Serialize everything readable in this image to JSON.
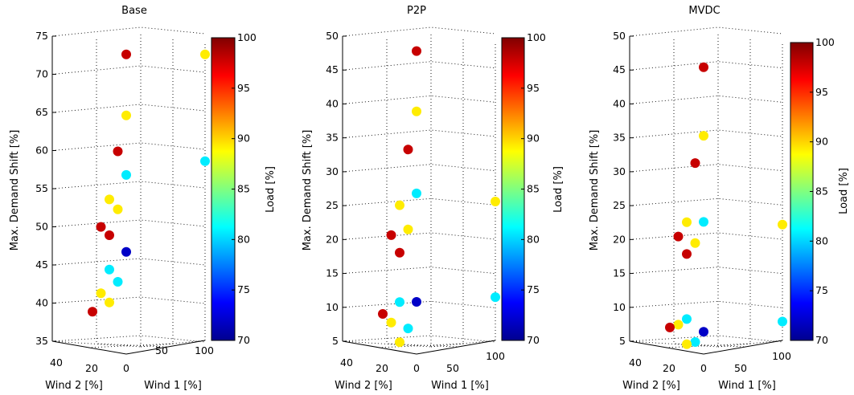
{
  "colorbar": {
    "min": 70,
    "max": 100,
    "ticks": [
      70,
      75,
      80,
      85,
      90,
      95,
      100
    ],
    "label": "Load [%]"
  },
  "floor_labels": {
    "wind2_ticks": [
      "40",
      "20",
      "0"
    ],
    "wind1_ticks": [
      "0",
      "50",
      "100"
    ],
    "wind2_label": "Wind 2 [%]",
    "wind1_label": "Wind 1 [%]"
  },
  "ylabel": "Max. Demand Shift [%]",
  "chart_data": [
    {
      "type": "scatter",
      "title": "Base",
      "ylabel": "Max. Demand Shift [%]",
      "xlabel": "Wind 1 [%]",
      "zlabel": "Wind 2 [%]",
      "colorbar_label": "Load [%]",
      "ylim": [
        35,
        75
      ],
      "yticks": [
        35,
        40,
        45,
        50,
        55,
        60,
        65,
        70,
        75
      ],
      "points": [
        {
          "x": 0,
          "z": 0,
          "y": 72.6,
          "load": 100
        },
        {
          "x": 100,
          "z": 0,
          "y": 72.6,
          "load": 90
        },
        {
          "x": 0,
          "z": 0,
          "y": 64.6,
          "load": 90
        },
        {
          "x": 0,
          "z": 10,
          "y": 60.0,
          "load": 100
        },
        {
          "x": 100,
          "z": 0,
          "y": 58.6,
          "load": 80
        },
        {
          "x": 0,
          "z": 0,
          "y": 56.8,
          "load": 80
        },
        {
          "x": 0,
          "z": 20,
          "y": 53.8,
          "load": 90
        },
        {
          "x": 0,
          "z": 10,
          "y": 52.4,
          "load": 90
        },
        {
          "x": 0,
          "z": 30,
          "y": 50.3,
          "load": 100
        },
        {
          "x": 0,
          "z": 20,
          "y": 49.1,
          "load": 100
        },
        {
          "x": 0,
          "z": 0,
          "y": 46.7,
          "load": 70
        },
        {
          "x": 0,
          "z": 20,
          "y": 44.6,
          "load": 80
        },
        {
          "x": 0,
          "z": 10,
          "y": 42.9,
          "load": 80
        },
        {
          "x": 0,
          "z": 30,
          "y": 41.6,
          "load": 90
        },
        {
          "x": 0,
          "z": 20,
          "y": 40.3,
          "load": 90
        },
        {
          "x": 0,
          "z": 40,
          "y": 39.3,
          "load": 100
        }
      ]
    },
    {
      "type": "scatter",
      "title": "P2P",
      "ylabel": "Max. Demand Shift [%]",
      "xlabel": "Wind 1 [%]",
      "zlabel": "Wind 2 [%]",
      "colorbar_label": "Load [%]",
      "ylim": [
        5,
        50
      ],
      "yticks": [
        5,
        10,
        15,
        20,
        25,
        30,
        35,
        40,
        45,
        50
      ],
      "points": [
        {
          "x": 0,
          "z": 0,
          "y": 47.8,
          "load": 100
        },
        {
          "x": 0,
          "z": 0,
          "y": 38.9,
          "load": 90
        },
        {
          "x": 0,
          "z": 10,
          "y": 33.4,
          "load": 100
        },
        {
          "x": 0,
          "z": 0,
          "y": 26.8,
          "load": 80
        },
        {
          "x": 100,
          "z": 0,
          "y": 25.6,
          "load": 90
        },
        {
          "x": 0,
          "z": 20,
          "y": 25.3,
          "load": 90
        },
        {
          "x": 0,
          "z": 10,
          "y": 21.6,
          "load": 90
        },
        {
          "x": 0,
          "z": 30,
          "y": 21.0,
          "load": 100
        },
        {
          "x": 0,
          "z": 20,
          "y": 18.3,
          "load": 100
        },
        {
          "x": 100,
          "z": 0,
          "y": 11.5,
          "load": 80
        },
        {
          "x": 0,
          "z": 20,
          "y": 11.0,
          "load": 80
        },
        {
          "x": 0,
          "z": 0,
          "y": 10.8,
          "load": 70
        },
        {
          "x": 0,
          "z": 40,
          "y": 9.5,
          "load": 100
        },
        {
          "x": 0,
          "z": 30,
          "y": 8.1,
          "load": 90
        },
        {
          "x": 0,
          "z": 10,
          "y": 7.0,
          "load": 80
        },
        {
          "x": 0,
          "z": 20,
          "y": 5.1,
          "load": 90
        }
      ]
    },
    {
      "type": "scatter",
      "title": "MVDC",
      "ylabel": "Max. Demand Shift [%]",
      "xlabel": "Wind 1 [%]",
      "zlabel": "Wind 2 [%]",
      "colorbar_label": "Load [%]",
      "ylim": [
        5,
        50
      ],
      "yticks": [
        5,
        10,
        15,
        20,
        25,
        30,
        35,
        40,
        45,
        50
      ],
      "points": [
        {
          "x": 0,
          "z": 0,
          "y": 45.4,
          "load": 100
        },
        {
          "x": 0,
          "z": 0,
          "y": 35.3,
          "load": 90
        },
        {
          "x": 0,
          "z": 10,
          "y": 31.4,
          "load": 100
        },
        {
          "x": 0,
          "z": 20,
          "y": 22.8,
          "load": 90
        },
        {
          "x": 0,
          "z": 0,
          "y": 22.6,
          "load": 80
        },
        {
          "x": 100,
          "z": 0,
          "y": 22.2,
          "load": 90
        },
        {
          "x": 0,
          "z": 30,
          "y": 20.8,
          "load": 100
        },
        {
          "x": 0,
          "z": 10,
          "y": 19.6,
          "load": 90
        },
        {
          "x": 0,
          "z": 20,
          "y": 18.1,
          "load": 100
        },
        {
          "x": 0,
          "z": 20,
          "y": 8.5,
          "load": 80
        },
        {
          "x": 100,
          "z": 0,
          "y": 7.9,
          "load": 80
        },
        {
          "x": 0,
          "z": 30,
          "y": 7.8,
          "load": 90
        },
        {
          "x": 0,
          "z": 40,
          "y": 7.5,
          "load": 100
        },
        {
          "x": 0,
          "z": 0,
          "y": 6.4,
          "load": 70
        },
        {
          "x": 0,
          "z": 10,
          "y": 5.0,
          "load": 80
        },
        {
          "x": 0,
          "z": 20,
          "y": 4.8,
          "load": 90
        }
      ]
    }
  ]
}
